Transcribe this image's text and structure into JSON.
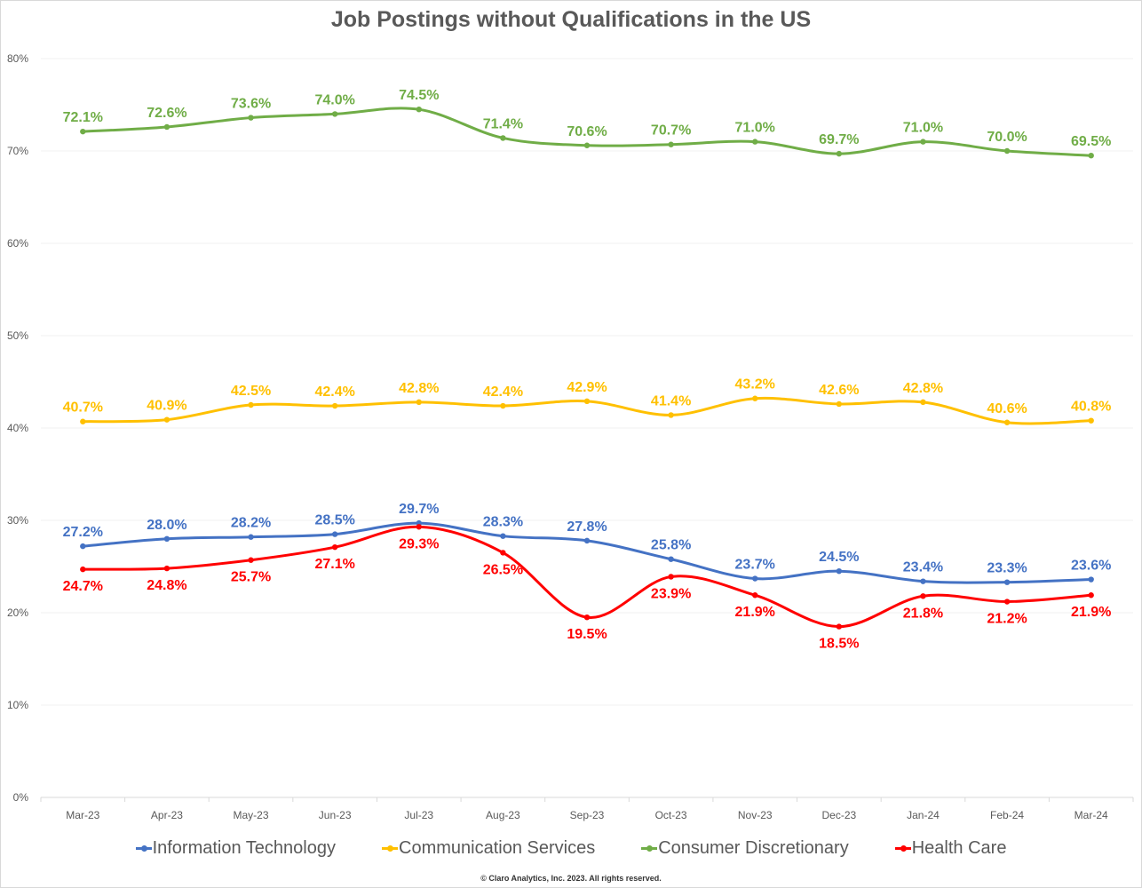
{
  "chart_data": {
    "type": "line",
    "title": "Job Postings without Qualifications in the US",
    "categories": [
      "Mar-23",
      "Apr-23",
      "May-23",
      "Jun-23",
      "Jul-23",
      "Aug-23",
      "Sep-23",
      "Oct-23",
      "Nov-23",
      "Dec-23",
      "Jan-24",
      "Feb-24",
      "Mar-24"
    ],
    "ylim": [
      0,
      80
    ],
    "yticks": [
      "0%",
      "10%",
      "20%",
      "30%",
      "40%",
      "50%",
      "60%",
      "70%",
      "80%"
    ],
    "grid": true,
    "smooth": true,
    "legend": "bottom",
    "series": [
      {
        "name": "Information Technology",
        "color": "#4472c4",
        "label_pos": "above",
        "values": [
          27.2,
          28.0,
          28.2,
          28.5,
          29.7,
          28.3,
          27.8,
          25.8,
          23.7,
          24.5,
          23.4,
          23.3,
          23.6
        ]
      },
      {
        "name": "Communication Services",
        "color": "#ffc000",
        "label_pos": "above",
        "values": [
          40.7,
          40.9,
          42.5,
          42.4,
          42.8,
          42.4,
          42.9,
          41.4,
          43.2,
          42.6,
          42.8,
          40.6,
          40.8
        ]
      },
      {
        "name": "Consumer Discretionary",
        "color": "#70ad47",
        "label_pos": "above",
        "values": [
          72.1,
          72.6,
          73.6,
          74.0,
          74.5,
          71.4,
          70.6,
          70.7,
          71.0,
          69.7,
          71.0,
          70.0,
          69.5
        ]
      },
      {
        "name": "Health Care",
        "color": "#ff0000",
        "label_pos": "below",
        "values": [
          24.7,
          24.8,
          25.7,
          27.1,
          29.3,
          26.5,
          19.5,
          23.9,
          21.9,
          18.5,
          21.8,
          21.2,
          21.9
        ]
      }
    ]
  },
  "footer": "© Claro Analytics, Inc. 2023. All rights reserved."
}
